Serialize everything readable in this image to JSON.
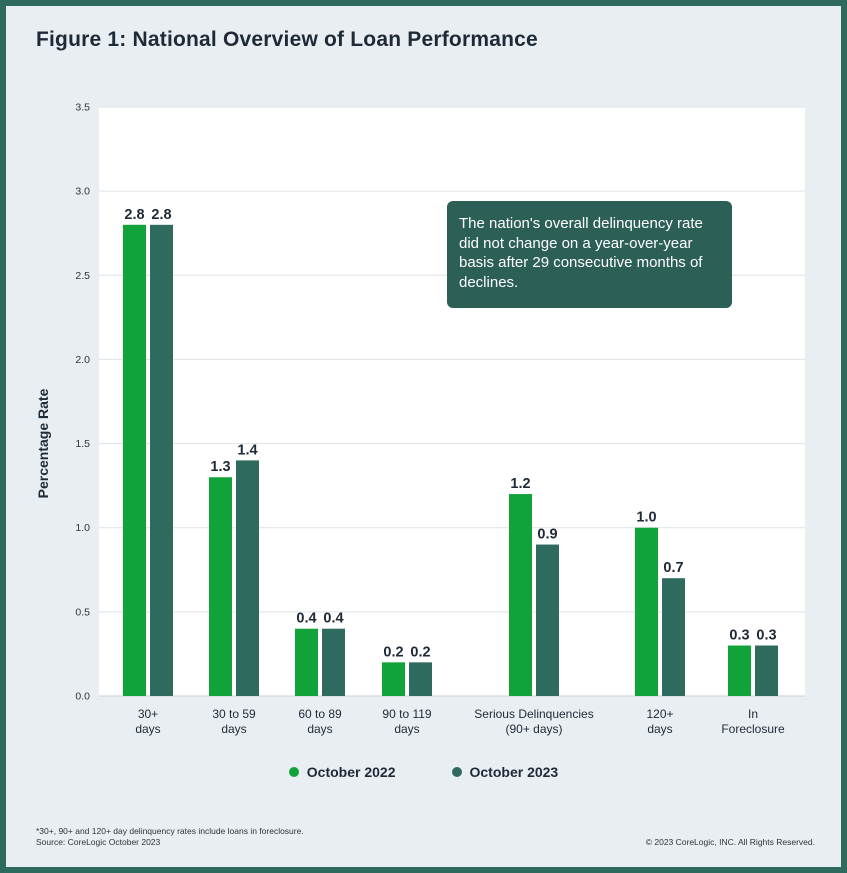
{
  "title": "Figure 1: National Overview of Loan Performance",
  "callout": "The nation's overall delinquency rate did not change on a year-over-year basis after 29 consecutive months of declines.",
  "footnote_lines": [
    "*30+, 90+ and 120+ day delinquency rates include loans in foreclosure.",
    "Source: CoreLogic October 2023"
  ],
  "copyright": "© 2023 CoreLogic, INC. All Rights Reserved.",
  "colors": {
    "series1": "#12a23a",
    "series2": "#2e6b5e",
    "frame": "#2e6b5e",
    "callout_bg": "#2c5f55"
  },
  "chart_data": {
    "type": "bar",
    "title": "Figure 1: National Overview of Loan Performance",
    "xlabel": "",
    "ylabel": "Percentage Rate",
    "ylim": [
      0,
      3.5
    ],
    "yticks": [
      "0.0",
      "0.5",
      "1.0",
      "1.5",
      "2.0",
      "2.5",
      "3.0",
      "3.5"
    ],
    "grid": true,
    "legend_position": "bottom",
    "categories": [
      [
        "30+",
        "days"
      ],
      [
        "30 to 59",
        "days"
      ],
      [
        "60 to 89",
        "days"
      ],
      [
        "90 to 119",
        "days"
      ],
      [
        "Serious Delinquencies",
        "(90+ days)"
      ],
      [
        "120+",
        "days"
      ],
      [
        "In",
        "Foreclosure"
      ]
    ],
    "series": [
      {
        "name": "October 2022",
        "values": [
          2.8,
          1.3,
          0.4,
          0.2,
          1.2,
          1.0,
          0.3
        ],
        "labels": [
          "2.8",
          "1.3",
          "0.4",
          "0.2",
          "1.2",
          "1.0",
          "0.3"
        ]
      },
      {
        "name": "October 2023",
        "values": [
          2.8,
          1.4,
          0.4,
          0.2,
          0.9,
          0.7,
          0.3
        ],
        "labels": [
          "2.8",
          "1.4",
          "0.4",
          "0.2",
          "0.9",
          "0.7",
          "0.3"
        ]
      }
    ]
  }
}
